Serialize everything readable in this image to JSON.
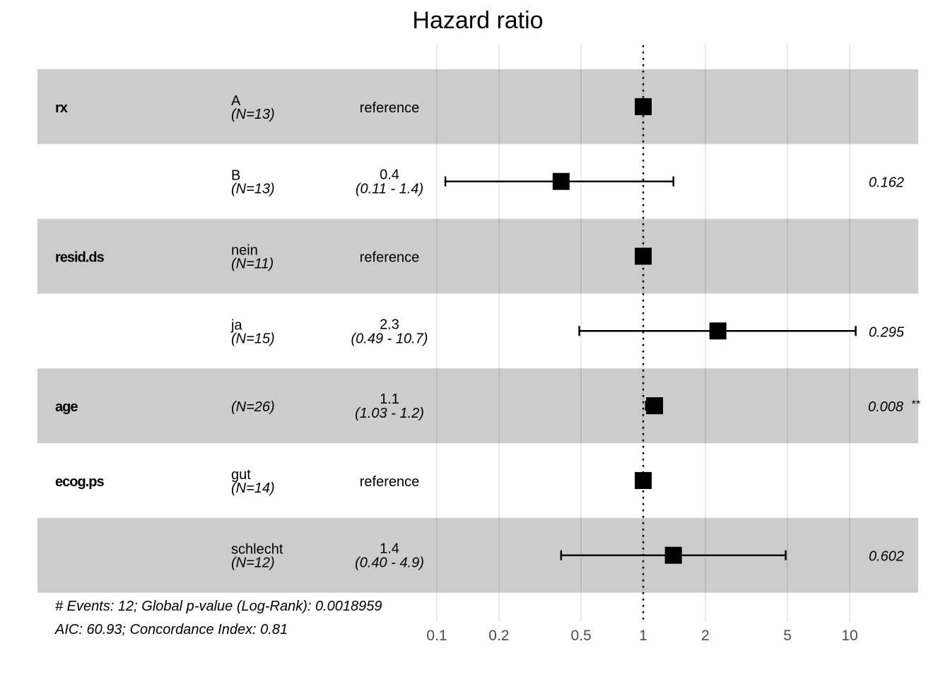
{
  "chart_data": {
    "type": "forest",
    "title": "Hazard ratio",
    "x_scale": "log",
    "xlim": [
      0.1,
      10
    ],
    "x_ticks": [
      "0.1",
      "0.2",
      "0.5",
      "1",
      "2",
      "5",
      "10"
    ],
    "reference_line": 1,
    "grid": true,
    "colors": {
      "band": "#cccccc",
      "grid": "#d9d9d9",
      "marker": "#000000"
    },
    "rows": [
      {
        "var": "rx",
        "level": "A",
        "n": "(N=13)",
        "estimate_label": "reference",
        "ci_label": "",
        "hr": 1,
        "lower": null,
        "upper": null,
        "p": "",
        "stars": ""
      },
      {
        "var": "",
        "level": "B",
        "n": "(N=13)",
        "estimate_label": "0.4",
        "ci_label": "(0.11 -  1.4)",
        "hr": 0.4,
        "lower": 0.11,
        "upper": 1.4,
        "p": "0.162",
        "stars": ""
      },
      {
        "var": "resid.ds",
        "level": "nein",
        "n": "(N=11)",
        "estimate_label": "reference",
        "ci_label": "",
        "hr": 1,
        "lower": null,
        "upper": null,
        "p": "",
        "stars": ""
      },
      {
        "var": "",
        "level": "ja",
        "n": "(N=15)",
        "estimate_label": "2.3",
        "ci_label": "(0.49 - 10.7)",
        "hr": 2.3,
        "lower": 0.49,
        "upper": 10.7,
        "p": "0.295",
        "stars": ""
      },
      {
        "var": "age",
        "level": "",
        "n": "(N=26)",
        "estimate_label": "1.1",
        "ci_label": "(1.03 -  1.2)",
        "hr": 1.1,
        "lower": 1.03,
        "upper": 1.2,
        "p": "0.008",
        "stars": "**"
      },
      {
        "var": "ecog.ps",
        "level": "gut",
        "n": "(N=14)",
        "estimate_label": "reference",
        "ci_label": "",
        "hr": 1,
        "lower": null,
        "upper": null,
        "p": "",
        "stars": ""
      },
      {
        "var": "",
        "level": "schlecht",
        "n": "(N=12)",
        "estimate_label": "1.4",
        "ci_label": "(0.40 -  4.9)",
        "hr": 1.4,
        "lower": 0.4,
        "upper": 4.9,
        "p": "0.602",
        "stars": ""
      }
    ],
    "footnote": [
      "# Events: 12; Global p-value (Log-Rank): 0.0018959",
      "AIC: 60.93; Concordance Index: 0.81"
    ]
  }
}
